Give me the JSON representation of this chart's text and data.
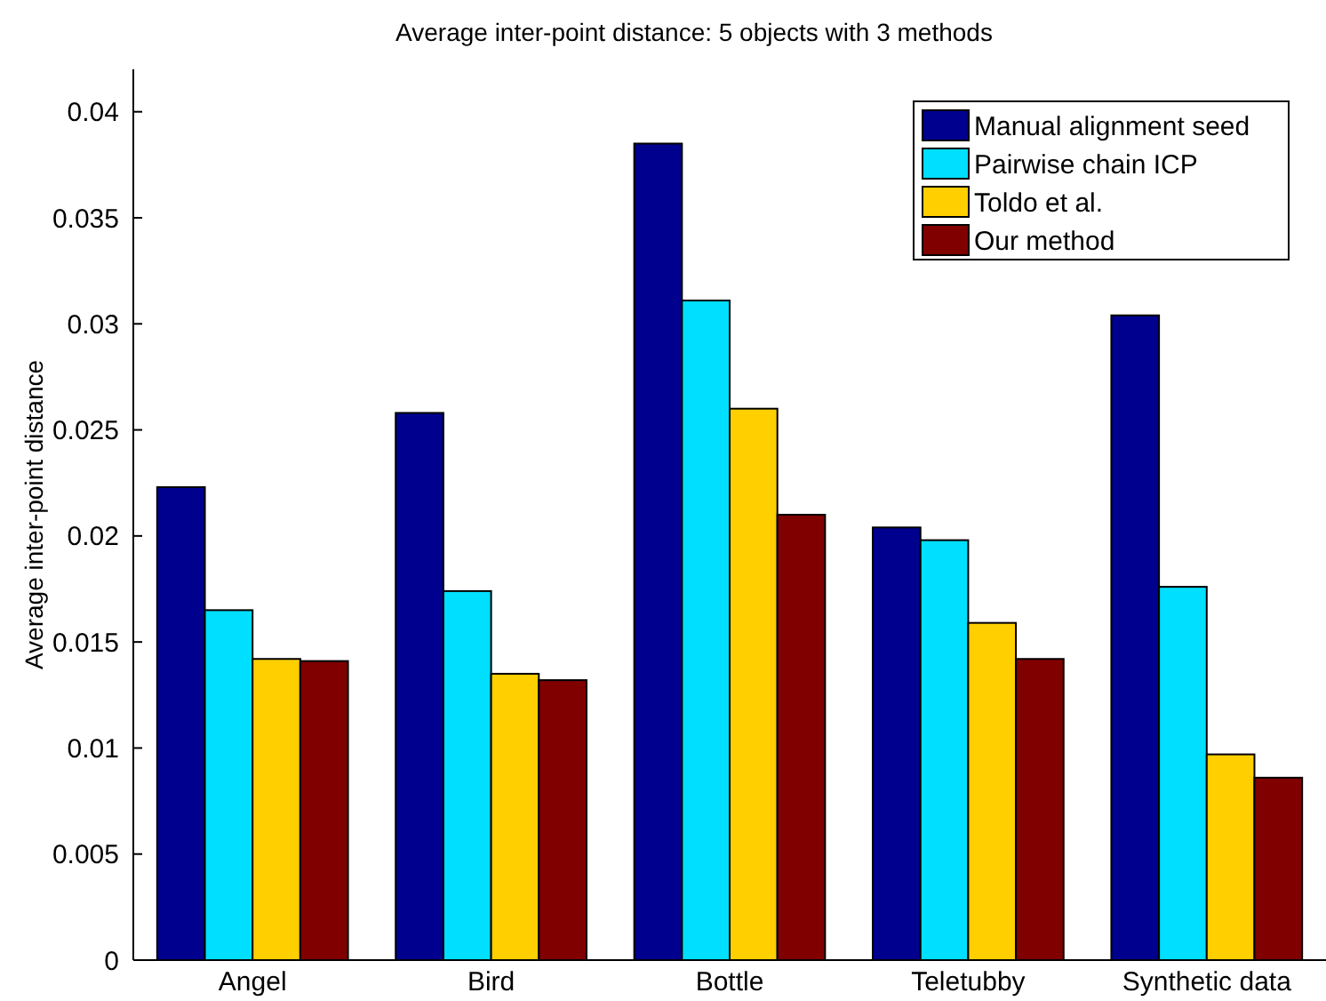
{
  "chart_data": {
    "type": "bar",
    "title": "Average inter-point distance: 5 objects with 3 methods",
    "ylabel": "Average inter-point distance",
    "categories": [
      "Angel",
      "Bird",
      "Bottle",
      "Teletubby",
      "Synthetic data"
    ],
    "series": [
      {
        "name": "Manual alignment seed",
        "color": "#00008f",
        "values": [
          0.0223,
          0.0258,
          0.0385,
          0.0204,
          0.0304
        ]
      },
      {
        "name": "Pairwise chain ICP",
        "color": "#00dfff",
        "values": [
          0.0165,
          0.0174,
          0.0311,
          0.0198,
          0.0176
        ]
      },
      {
        "name": "Toldo et al.",
        "color": "#ffcf00",
        "values": [
          0.0142,
          0.0135,
          0.026,
          0.0159,
          0.0097
        ]
      },
      {
        "name": "Our method",
        "color": "#800000",
        "values": [
          0.0141,
          0.0132,
          0.021,
          0.0142,
          0.0086
        ]
      }
    ],
    "ylim": [
      0,
      0.042
    ],
    "yticks": [
      0,
      0.005,
      0.01,
      0.015,
      0.02,
      0.025,
      0.03,
      0.035,
      0.04
    ],
    "grid": false,
    "legend": "top right"
  }
}
